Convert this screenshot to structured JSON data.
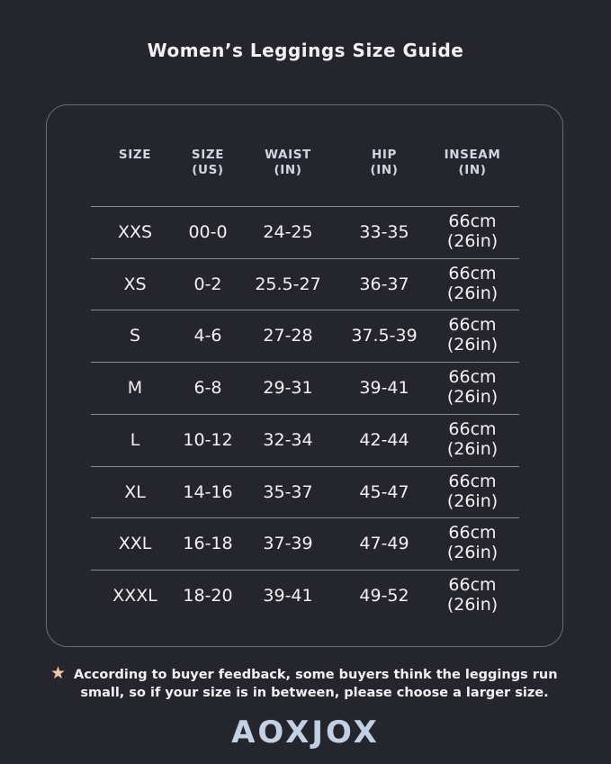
{
  "title": "Women’s Leggings Size Guide",
  "table": {
    "headers": [
      [
        "SIZE",
        ""
      ],
      [
        "SIZE",
        "(US)"
      ],
      [
        "WAIST",
        "(IN)"
      ],
      [
        "HIP",
        "(IN)"
      ],
      [
        "INSEAM",
        "(IN)"
      ]
    ],
    "rows": [
      [
        "XXS",
        "00-0",
        "24-25",
        "33-35",
        "66cm",
        "(26in)"
      ],
      [
        "XS",
        "0-2",
        "25.5-27",
        "36-37",
        "66cm",
        "(26in)"
      ],
      [
        "S",
        "4-6",
        "27-28",
        "37.5-39",
        "66cm",
        "(26in)"
      ],
      [
        "M",
        "6-8",
        "29-31",
        "39-41",
        "66cm",
        "(26in)"
      ],
      [
        "L",
        "10-12",
        "32-34",
        "42-44",
        "66cm",
        "(26in)"
      ],
      [
        "XL",
        "14-16",
        "35-37",
        "45-47",
        "66cm",
        "(26in)"
      ],
      [
        "XXL",
        "16-18",
        "37-39",
        "47-49",
        "66cm",
        "(26in)"
      ],
      [
        "XXXL",
        "18-20",
        "39-41",
        "49-52",
        "66cm",
        "(26in)"
      ]
    ]
  },
  "note": {
    "icon": "star-icon",
    "line1": "According to buyer feedback, some buyers think the leggings run",
    "line2": "small, so if your size is in between, please choose a larger size."
  },
  "brand": "AOXJOX",
  "colors": {
    "background": "#25252d",
    "header_text": "#d4d4e2",
    "star": "#f5c7a6",
    "logo": "#c3d0e4"
  }
}
